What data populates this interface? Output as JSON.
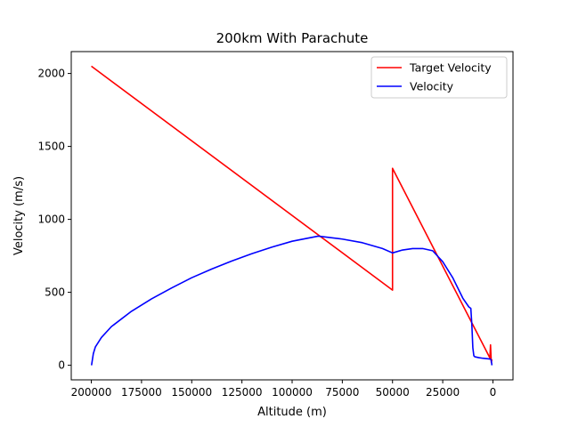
{
  "chart_data": {
    "type": "line",
    "title": "200km With Parachute",
    "xlabel": "Altitude (m)",
    "ylabel": "Velocity (m/s)",
    "xlim": [
      210000,
      -10000
    ],
    "ylim": [
      -100,
      2150
    ],
    "x_inverted": true,
    "xticks": [
      200000,
      175000,
      150000,
      125000,
      100000,
      75000,
      50000,
      25000,
      0
    ],
    "xtick_labels": [
      "200000",
      "175000",
      "150000",
      "125000",
      "100000",
      "75000",
      "50000",
      "25000",
      "0"
    ],
    "yticks": [
      0,
      500,
      1000,
      1500,
      2000
    ],
    "ytick_labels": [
      "0",
      "500",
      "1000",
      "1500",
      "2000"
    ],
    "legend": {
      "placement": "top-right",
      "entries": [
        "Target Velocity",
        "Velocity"
      ]
    },
    "series": [
      {
        "name": "Target Velocity",
        "color": "#ff0000",
        "x": [
          200000,
          50000,
          50000,
          1500,
          1200,
          800,
          500
        ],
        "y": [
          2050,
          515,
          1350,
          50,
          140,
          20,
          40
        ]
      },
      {
        "name": "Velocity",
        "color": "#0000ff",
        "x": [
          199900,
          199000,
          198000,
          195000,
          190000,
          180000,
          170000,
          160000,
          150000,
          140000,
          130000,
          120000,
          110000,
          100000,
          87000,
          75000,
          65000,
          55000,
          50000,
          45000,
          40000,
          35000,
          30000,
          25000,
          20000,
          15000,
          12000,
          11000,
          10500,
          10000,
          9500,
          9000,
          7000,
          5000,
          3000,
          1500,
          1000,
          800,
          500
        ],
        "y": [
          0,
          80,
          125,
          190,
          265,
          370,
          455,
          530,
          600,
          660,
          715,
          765,
          810,
          850,
          885,
          865,
          840,
          800,
          770,
          790,
          800,
          800,
          785,
          710,
          600,
          460,
          400,
          390,
          280,
          120,
          65,
          58,
          52,
          48,
          45,
          43,
          40,
          30,
          0
        ]
      }
    ]
  }
}
